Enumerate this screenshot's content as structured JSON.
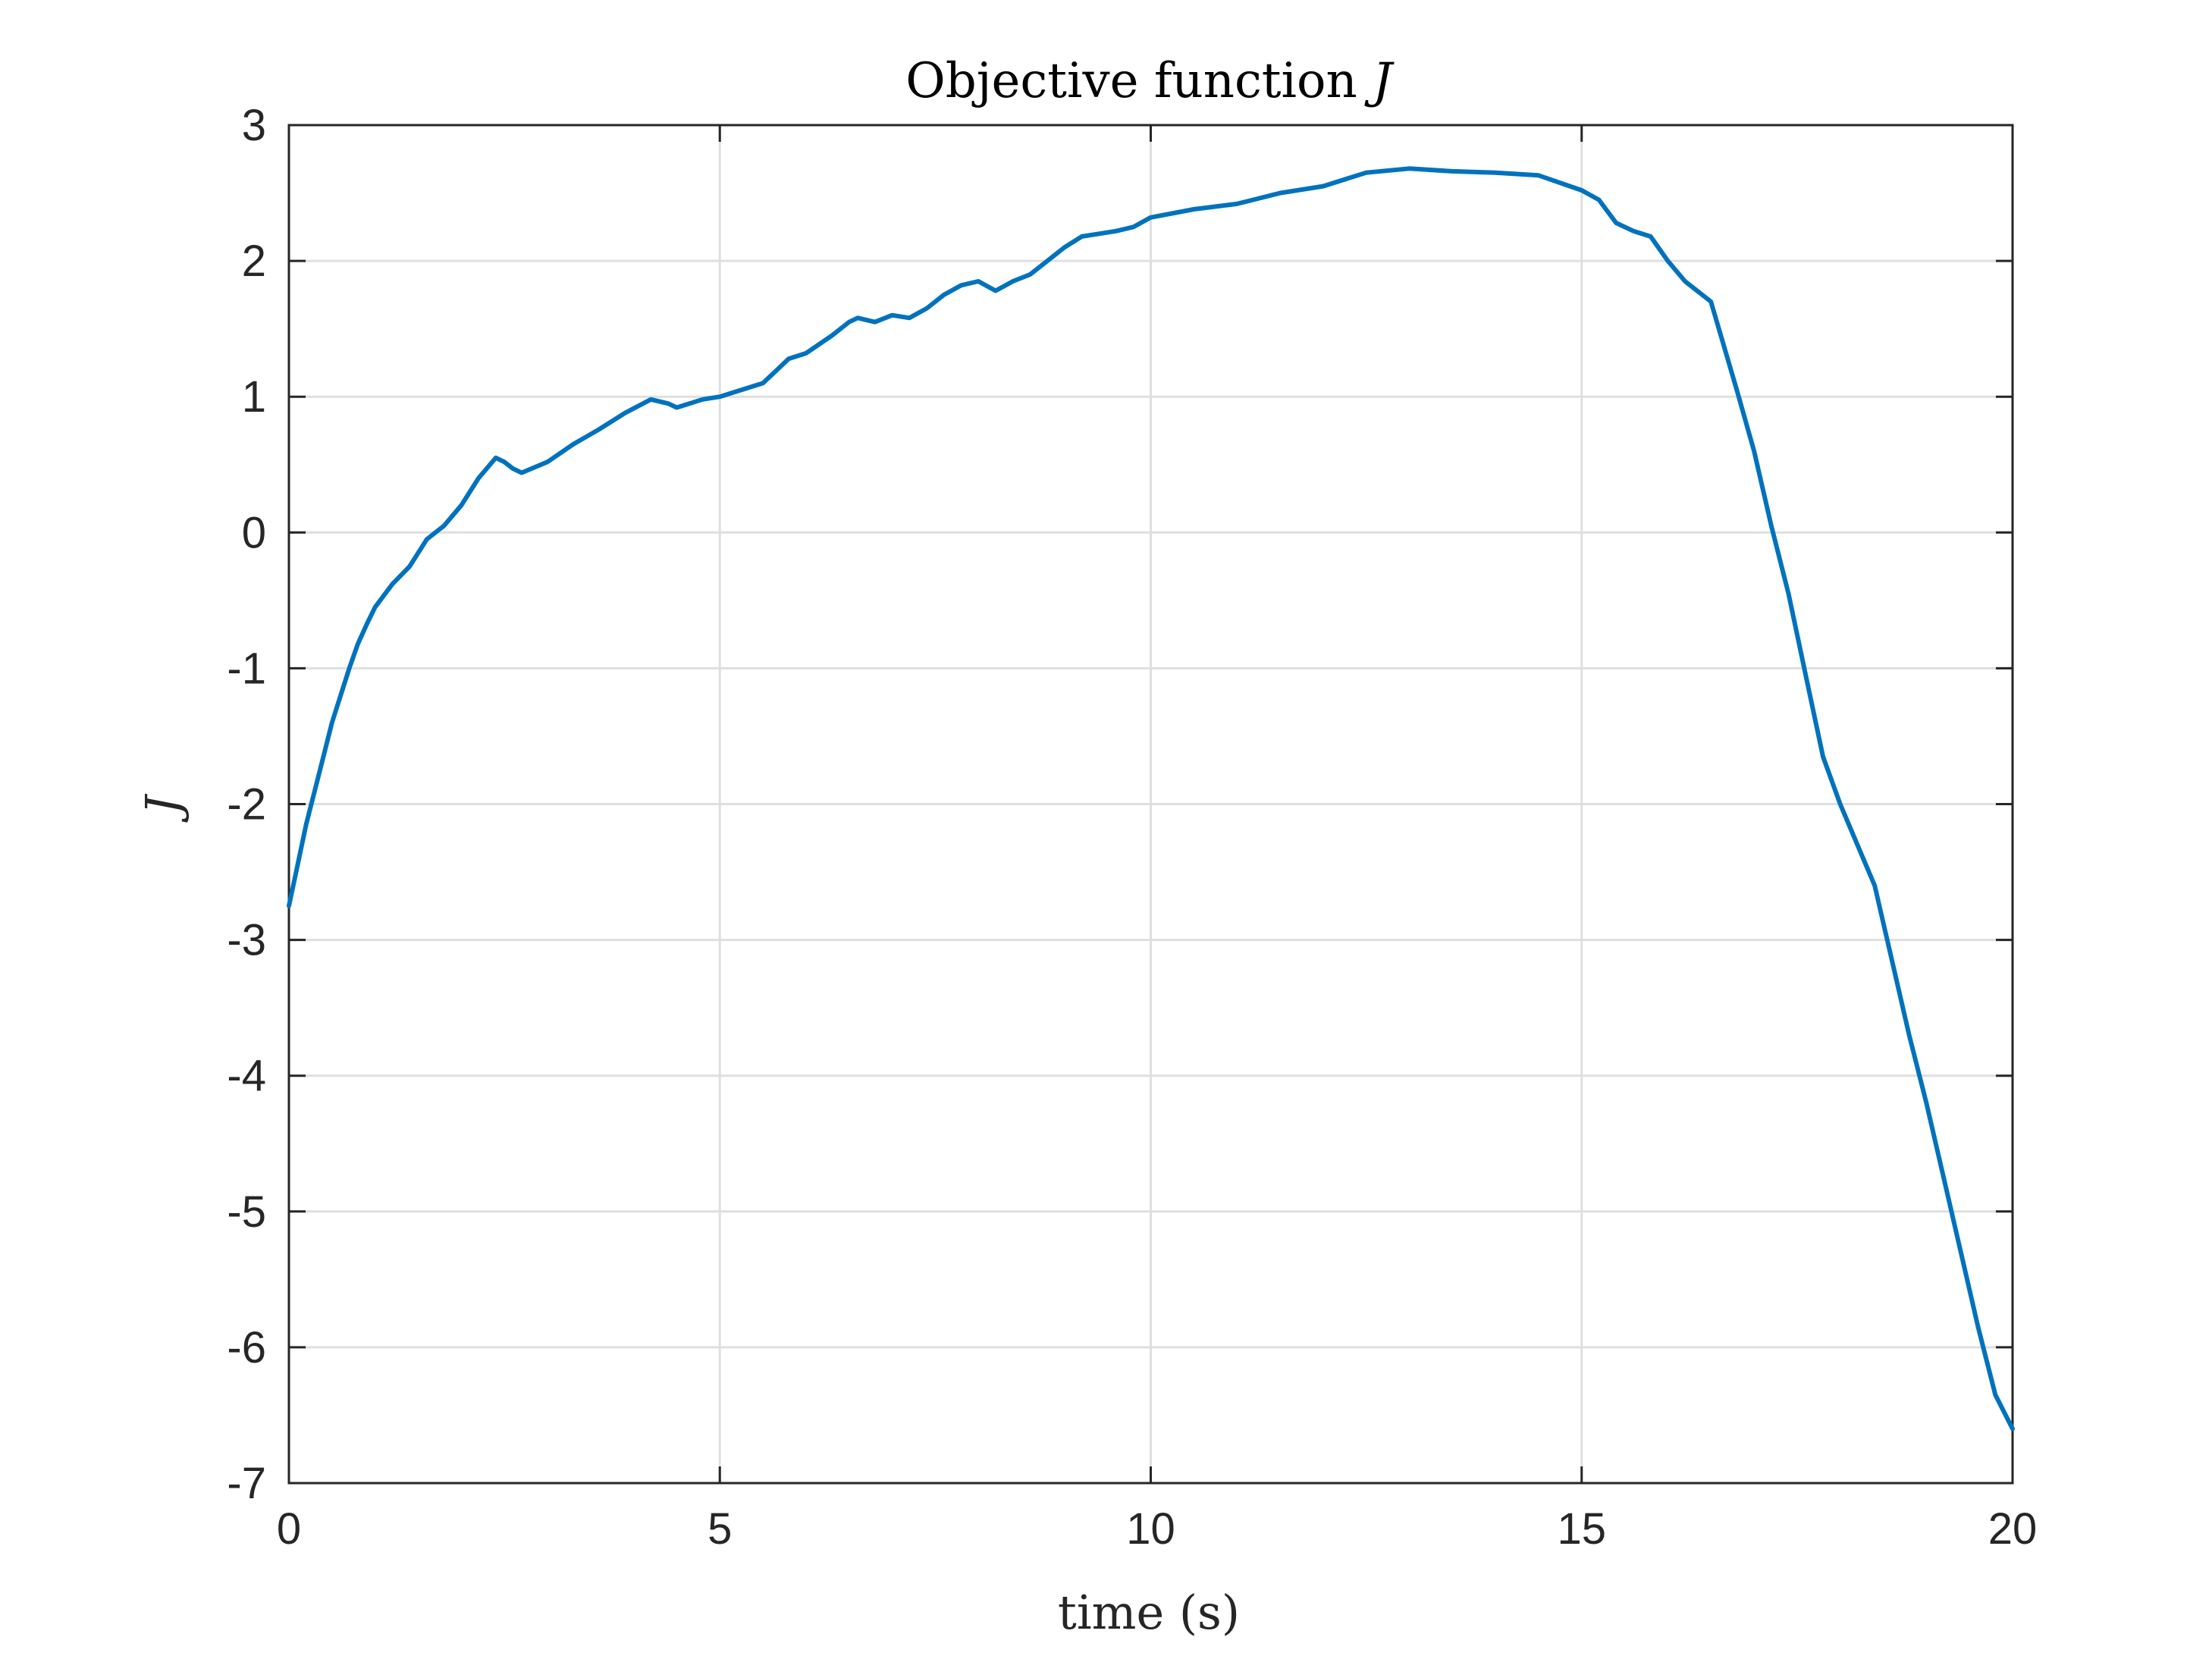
{
  "chart_data": {
    "type": "line",
    "title": "Objective function",
    "title_symbol": "J",
    "xlabel": "time (s)",
    "ylabel": "J",
    "xlim": [
      0,
      20
    ],
    "ylim": [
      -7,
      3
    ],
    "xticks": [
      0,
      5,
      10,
      15,
      20
    ],
    "yticks": [
      -7,
      -6,
      -5,
      -4,
      -3,
      -2,
      -1,
      0,
      1,
      2,
      3
    ],
    "xtick_labels": [
      "0",
      "5",
      "10",
      "15",
      "20"
    ],
    "ytick_labels": [
      "-7",
      "-6",
      "-5",
      "-4",
      "-3",
      "-2",
      "-1",
      "0",
      "1",
      "2",
      "3"
    ],
    "grid": true,
    "series": [
      {
        "color": "#0072BD",
        "x": [
          0,
          0.1,
          0.2,
          0.3,
          0.4,
          0.5,
          0.6,
          0.7,
          0.8,
          0.9,
          1.0,
          1.2,
          1.4,
          1.6,
          1.8,
          2.0,
          2.2,
          2.4,
          2.5,
          2.6,
          2.7,
          3.0,
          3.3,
          3.6,
          3.9,
          4.2,
          4.4,
          4.5,
          4.8,
          5.0,
          5.1,
          5.4,
          5.5,
          5.8,
          6.0,
          6.3,
          6.5,
          6.6,
          6.8,
          7.0,
          7.2,
          7.4,
          7.6,
          7.8,
          8.0,
          8.2,
          8.4,
          8.6,
          8.8,
          9.0,
          9.2,
          9.4,
          9.6,
          9.8,
          10.0,
          10.5,
          11.0,
          11.5,
          12.0,
          12.5,
          13.0,
          13.5,
          14.0,
          14.5,
          15.0,
          15.2,
          15.4,
          15.6,
          15.8,
          16.0,
          16.2,
          16.5,
          16.8,
          17.0,
          17.2,
          17.4,
          17.6,
          17.8,
          18.0,
          18.2,
          18.4,
          18.6,
          18.8,
          19.0,
          19.2,
          19.4,
          19.6,
          19.8,
          20.0
        ],
        "y": [
          -2.75,
          -2.45,
          -2.15,
          -1.9,
          -1.65,
          -1.4,
          -1.2,
          -1.0,
          -0.82,
          -0.68,
          -0.55,
          -0.38,
          -0.25,
          -0.05,
          0.05,
          0.2,
          0.4,
          0.55,
          0.52,
          0.47,
          0.44,
          0.52,
          0.65,
          0.76,
          0.88,
          0.98,
          0.95,
          0.92,
          0.98,
          1.0,
          1.02,
          1.08,
          1.1,
          1.28,
          1.32,
          1.45,
          1.55,
          1.58,
          1.55,
          1.6,
          1.58,
          1.65,
          1.75,
          1.82,
          1.85,
          1.78,
          1.85,
          1.9,
          2.0,
          2.1,
          2.18,
          2.2,
          2.22,
          2.25,
          2.32,
          2.38,
          2.42,
          2.5,
          2.55,
          2.65,
          2.68,
          2.66,
          2.65,
          2.63,
          2.52,
          2.45,
          2.28,
          2.22,
          2.18,
          2.0,
          1.85,
          1.7,
          1.05,
          0.6,
          0.05,
          -0.45,
          -1.05,
          -1.65,
          -2.0,
          -2.3,
          -2.6,
          -3.15,
          -3.7,
          -4.2,
          -4.75,
          -5.3,
          -5.85,
          -6.35,
          -6.6
        ]
      }
    ]
  }
}
